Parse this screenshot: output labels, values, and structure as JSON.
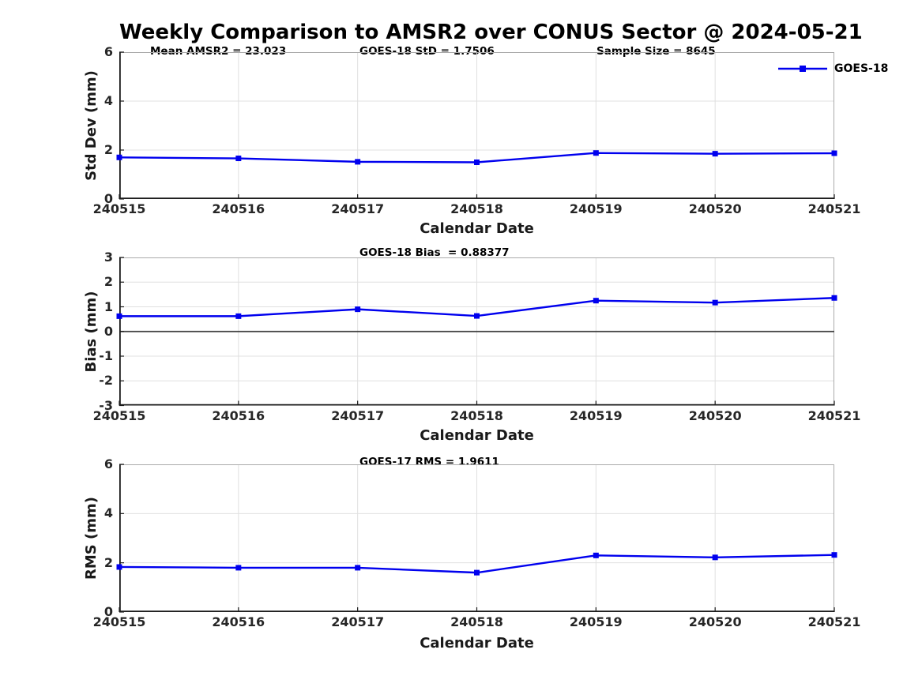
{
  "title": "Weekly Comparison to AMSR2 over CONUS Sector @ 2024-05-21",
  "legend": {
    "label": "GOES-18"
  },
  "colors": {
    "line": "#0000EE",
    "axis": "#1a1a1a",
    "box": "#aaaaaa",
    "grid": "#e0e0e0",
    "zero_line": "#404040",
    "text": "#262626"
  },
  "chart_data": [
    {
      "type": "line",
      "ylabel": "Std Dev (mm)",
      "xlabel": "Calendar Date",
      "ylim": [
        0,
        6
      ],
      "yticks": [
        0,
        2,
        4,
        6
      ],
      "grid": true,
      "legend_position": "top-right-outside",
      "categories": [
        "240515",
        "240516",
        "240517",
        "240518",
        "240519",
        "240520",
        "240521"
      ],
      "series": [
        {
          "name": "GOES-18",
          "marker": "square",
          "values": [
            1.7,
            1.66,
            1.52,
            1.5,
            1.88,
            1.85,
            1.87
          ]
        }
      ],
      "annotations": [
        {
          "text": "Mean AMSR2 = 23.023"
        },
        {
          "text": "GOES-18 StD = 1.7506"
        },
        {
          "text": "Sample Size = 8645"
        }
      ]
    },
    {
      "type": "line",
      "ylabel": "Bias (mm)",
      "xlabel": "Calendar Date",
      "ylim": [
        -3,
        3
      ],
      "yticks": [
        -3,
        -2,
        -1,
        0,
        1,
        2,
        3
      ],
      "grid": true,
      "zero_line": true,
      "categories": [
        "240515",
        "240516",
        "240517",
        "240518",
        "240519",
        "240520",
        "240521"
      ],
      "series": [
        {
          "name": "GOES-18",
          "marker": "square",
          "values": [
            0.62,
            0.62,
            0.9,
            0.63,
            1.25,
            1.17,
            1.36
          ]
        }
      ],
      "annotations": [
        {
          "text": "GOES-18 Bias  = 0.88377"
        }
      ]
    },
    {
      "type": "line",
      "ylabel": "RMS (mm)",
      "xlabel": "Calendar Date",
      "ylim": [
        0,
        6
      ],
      "yticks": [
        0,
        2,
        4,
        6
      ],
      "grid": true,
      "categories": [
        "240515",
        "240516",
        "240517",
        "240518",
        "240519",
        "240520",
        "240521"
      ],
      "series": [
        {
          "name": "GOES-18",
          "marker": "square",
          "values": [
            1.83,
            1.8,
            1.8,
            1.6,
            2.3,
            2.22,
            2.32
          ]
        }
      ],
      "annotations": [
        {
          "text": "GOES-17 RMS = 1.9611"
        }
      ]
    }
  ]
}
